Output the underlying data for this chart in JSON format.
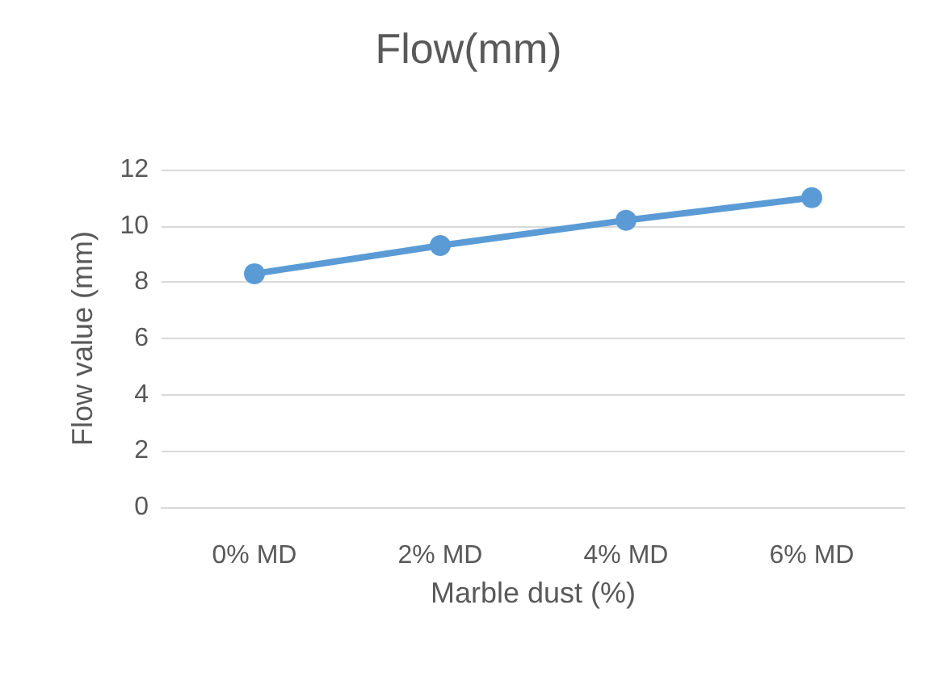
{
  "chart_data": {
    "type": "line",
    "title": "Flow(mm)",
    "xlabel": "Marble dust (%)",
    "ylabel": "Flow value (mm)",
    "categories": [
      "0% MD",
      "2% MD",
      "4% MD",
      "6% MD"
    ],
    "series": [
      {
        "color": "#5b9bd5",
        "values": [
          8.3,
          9.3,
          10.2,
          11.0
        ]
      }
    ],
    "ylim": [
      0,
      12
    ],
    "yticks": [
      0,
      2,
      4,
      6,
      8,
      10,
      12
    ],
    "grid": "y",
    "marker": "circle",
    "line_style": "solid"
  }
}
